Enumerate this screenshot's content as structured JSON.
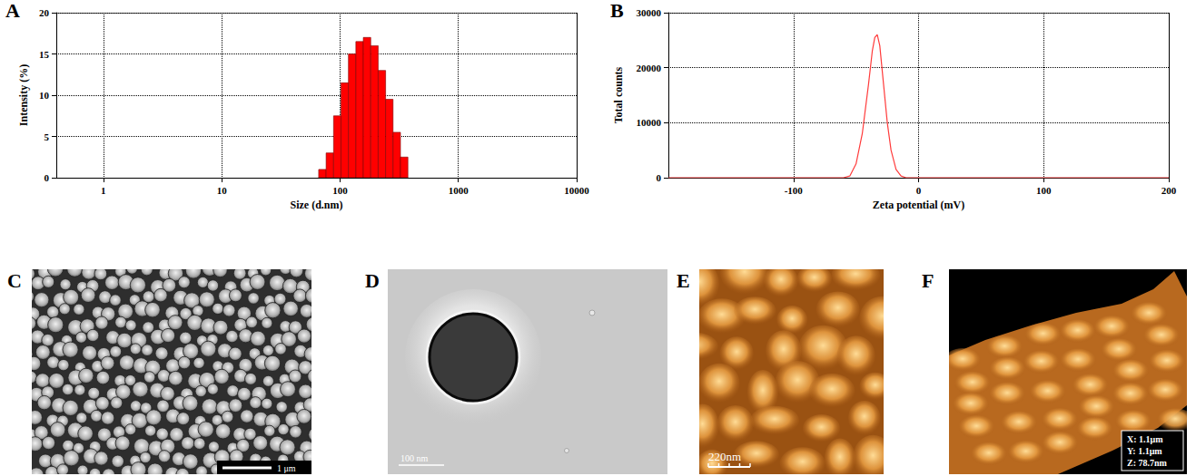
{
  "chart_data": [
    {
      "panel": "A",
      "type": "histogram",
      "x_label": "Size (d.nm)",
      "y_label": "Intensity (%)",
      "bins": [
        66.0,
        76.3,
        88.2,
        101.9,
        117.8,
        136.1,
        157.3,
        181.8,
        210.1,
        242.8,
        280.6,
        324.3,
        374.8
      ],
      "values": [
        1.0,
        3.0,
        7.5,
        11.5,
        15.0,
        16.5,
        17.0,
        16.0,
        13.0,
        9.5,
        5.5,
        2.5
      ],
      "color": "#ff0000",
      "log": "x",
      "xlim": [
        0.4,
        10000
      ],
      "xticks": [
        1,
        10,
        100,
        1000,
        10000
      ],
      "ylim": [
        0,
        20
      ],
      "yticks": [
        0,
        5,
        10,
        15,
        20
      ],
      "grid": true
    },
    {
      "panel": "B",
      "type": "line",
      "x_label": "Zeta potential (mV)",
      "y_label": "Total counts",
      "x": [
        -200,
        -60,
        -55,
        -50,
        -45,
        -40,
        -37,
        -35,
        -33,
        -31,
        -28,
        -25,
        -22,
        -18,
        -14,
        -10,
        200
      ],
      "values": [
        0,
        0,
        300,
        2500,
        8000,
        17000,
        23000,
        25500,
        26000,
        24000,
        17000,
        10000,
        5000,
        1500,
        300,
        0,
        0
      ],
      "color": "#ff3b3b",
      "xlim": [
        -200,
        200
      ],
      "xticks": [
        -100,
        0,
        100,
        200
      ],
      "ylim": [
        0,
        30000
      ],
      "yticks": [
        0,
        10000,
        20000,
        30000
      ],
      "grid": true
    }
  ],
  "images": [
    {
      "panel": "C",
      "scale_bar": "1 μm"
    },
    {
      "panel": "D",
      "scale_bar": "100 nm"
    },
    {
      "panel": "E",
      "scale_bar": "220nm"
    },
    {
      "panel": "F",
      "labels": [
        "X: 1.1μm",
        "Y: 1.1μm",
        "Z: 78.7nm"
      ]
    }
  ]
}
